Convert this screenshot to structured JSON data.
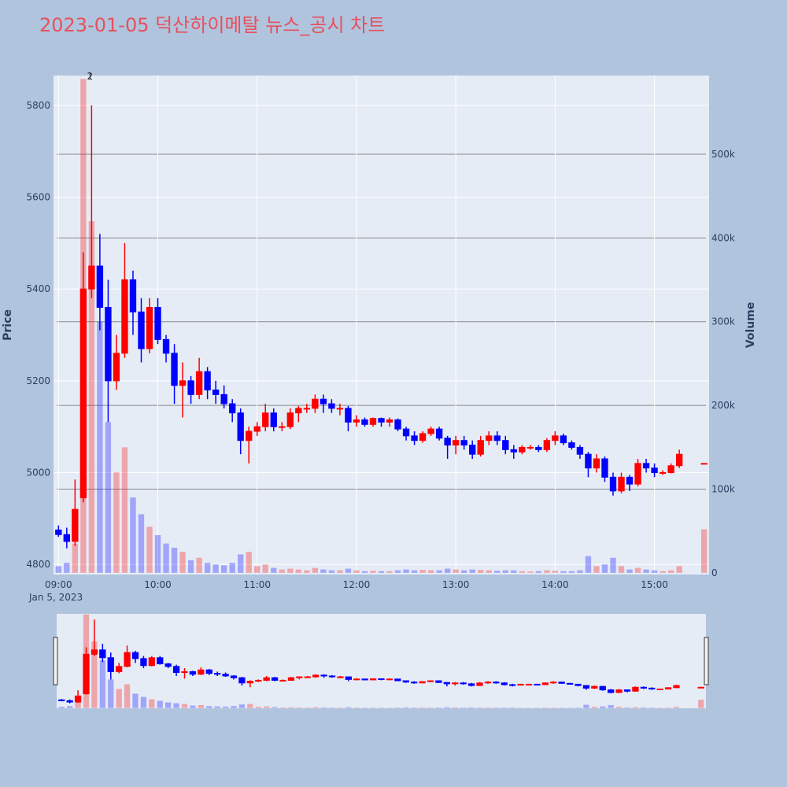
{
  "chart_data": {
    "type": "candlestick",
    "title": "2023-01-05 덕산하이메탈 뉴스_공시 차트",
    "y_label": "Price",
    "y2_label": "Volume",
    "x_sublabel": "Jan 5, 2023",
    "increasing_color": "#ff0000",
    "decreasing_color": "#0000ff",
    "xlim": [
      "08:57",
      "15:33"
    ],
    "xticks": [
      "09:00",
      "10:00",
      "11:00",
      "12:00",
      "13:00",
      "14:00",
      "15:00"
    ],
    "ylim": [
      4778,
      5865
    ],
    "yticks": [
      4800,
      5000,
      5200,
      5400,
      5600,
      5800
    ],
    "y2lim": [
      -2000,
      594000
    ],
    "y2ticks": [
      0,
      {
        "value": 100000,
        "label": "100k"
      },
      {
        "value": 200000,
        "label": "200k"
      },
      {
        "value": 300000,
        "label": "300k"
      },
      {
        "value": 400000,
        "label": "400k"
      },
      {
        "value": 500000,
        "label": "500k"
      }
    ],
    "annotations": [
      {
        "x": "09:19",
        "text": "1"
      },
      {
        "x": "09:19",
        "text": "2"
      }
    ],
    "x": [
      "09:00",
      "09:05",
      "09:10",
      "09:15",
      "09:20",
      "09:25",
      "09:30",
      "09:35",
      "09:40",
      "09:45",
      "09:50",
      "09:55",
      "10:00",
      "10:05",
      "10:10",
      "10:15",
      "10:20",
      "10:25",
      "10:30",
      "10:35",
      "10:40",
      "10:45",
      "10:50",
      "10:55",
      "11:00",
      "11:05",
      "11:10",
      "11:15",
      "11:20",
      "11:25",
      "11:30",
      "11:35",
      "11:40",
      "11:45",
      "11:50",
      "11:55",
      "12:00",
      "12:05",
      "12:10",
      "12:15",
      "12:20",
      "12:25",
      "12:30",
      "12:35",
      "12:40",
      "12:45",
      "12:50",
      "12:55",
      "13:00",
      "13:05",
      "13:10",
      "13:15",
      "13:20",
      "13:25",
      "13:30",
      "13:35",
      "13:40",
      "13:45",
      "13:50",
      "13:55",
      "14:00",
      "14:05",
      "14:10",
      "14:15",
      "14:20",
      "14:25",
      "14:30",
      "14:35",
      "14:40",
      "14:45",
      "14:50",
      "14:55",
      "15:00",
      "15:05",
      "15:10",
      "15:15",
      "15:30"
    ],
    "open": [
      4875,
      4865,
      4850,
      4945,
      5400,
      5450,
      5360,
      5200,
      5260,
      5420,
      5350,
      5270,
      5360,
      5290,
      5260,
      5190,
      5200,
      5170,
      5220,
      5180,
      5170,
      5150,
      5130,
      5070,
      5090,
      5100,
      5130,
      5100,
      5100,
      5130,
      5140,
      5140,
      5160,
      5150,
      5140,
      5140,
      5110,
      5115,
      5105,
      5118,
      5110,
      5115,
      5095,
      5080,
      5070,
      5085,
      5095,
      5075,
      5060,
      5070,
      5060,
      5040,
      5070,
      5080,
      5070,
      5050,
      5045,
      5055,
      5055,
      5050,
      5070,
      5080,
      5065,
      5055,
      5040,
      5010,
      5030,
      4990,
      4960,
      4990,
      4975,
      5020,
      5010,
      5000,
      5000,
      5015,
      5020
    ],
    "high": [
      4885,
      4880,
      4985,
      5480,
      5800,
      5520,
      5420,
      5300,
      5500,
      5440,
      5380,
      5380,
      5380,
      5300,
      5280,
      5240,
      5210,
      5250,
      5230,
      5200,
      5190,
      5160,
      5140,
      5100,
      5110,
      5150,
      5140,
      5110,
      5140,
      5145,
      5150,
      5170,
      5170,
      5160,
      5150,
      5145,
      5125,
      5120,
      5120,
      5120,
      5120,
      5118,
      5100,
      5090,
      5090,
      5100,
      5100,
      5080,
      5080,
      5080,
      5070,
      5080,
      5090,
      5090,
      5080,
      5060,
      5060,
      5060,
      5060,
      5075,
      5090,
      5085,
      5070,
      5060,
      5045,
      5040,
      5035,
      5000,
      5000,
      4995,
      5030,
      5030,
      5020,
      5005,
      5020,
      5050,
      5020
    ],
    "low": [
      4860,
      4835,
      4840,
      4935,
      5380,
      5310,
      5110,
      5180,
      5250,
      5300,
      5240,
      5260,
      5280,
      5240,
      5150,
      5120,
      5150,
      5160,
      5160,
      5150,
      5140,
      5110,
      5040,
      5020,
      5080,
      5090,
      5090,
      5090,
      5095,
      5110,
      5130,
      5130,
      5130,
      5130,
      5125,
      5090,
      5100,
      5100,
      5100,
      5100,
      5100,
      5090,
      5070,
      5060,
      5065,
      5080,
      5070,
      5030,
      5040,
      5050,
      5030,
      5035,
      5060,
      5060,
      5040,
      5030,
      5040,
      5050,
      5045,
      5045,
      5060,
      5060,
      5050,
      5030,
      4990,
      5000,
      4980,
      4950,
      4955,
      4960,
      4970,
      5000,
      4990,
      4995,
      4998,
      5010,
      5020
    ],
    "close": [
      4865,
      4850,
      4920,
      5400,
      5450,
      5360,
      5200,
      5260,
      5420,
      5350,
      5270,
      5360,
      5290,
      5260,
      5190,
      5200,
      5170,
      5220,
      5180,
      5170,
      5150,
      5130,
      5070,
      5090,
      5100,
      5130,
      5100,
      5100,
      5130,
      5140,
      5140,
      5160,
      5150,
      5140,
      5140,
      5110,
      5115,
      5105,
      5118,
      5110,
      5115,
      5095,
      5080,
      5070,
      5085,
      5095,
      5075,
      5060,
      5070,
      5060,
      5040,
      5070,
      5080,
      5070,
      5050,
      5045,
      5055,
      5055,
      5050,
      5070,
      5080,
      5065,
      5055,
      5040,
      5010,
      5030,
      4990,
      4960,
      4990,
      4975,
      5020,
      5010,
      5000,
      5000,
      5015,
      5040,
      5020
    ],
    "volume": [
      8000,
      12000,
      35000,
      590000,
      420000,
      300000,
      180000,
      120000,
      150000,
      90000,
      70000,
      55000,
      45000,
      35000,
      30000,
      25000,
      15000,
      18000,
      12000,
      10000,
      9000,
      12000,
      22000,
      25000,
      8000,
      10000,
      6000,
      4000,
      5000,
      4000,
      3000,
      6000,
      4000,
      3000,
      3000,
      5000,
      3000,
      2000,
      2500,
      2000,
      2000,
      3000,
      4000,
      3000,
      3500,
      3000,
      3000,
      5000,
      4000,
      3000,
      4000,
      3500,
      3000,
      2500,
      3000,
      3000,
      2000,
      1500,
      2000,
      3000,
      2500,
      2000,
      2000,
      3000,
      20000,
      8000,
      10000,
      18000,
      8000,
      4000,
      6000,
      4000,
      3000,
      2000,
      3000,
      8000,
      52000
    ]
  }
}
